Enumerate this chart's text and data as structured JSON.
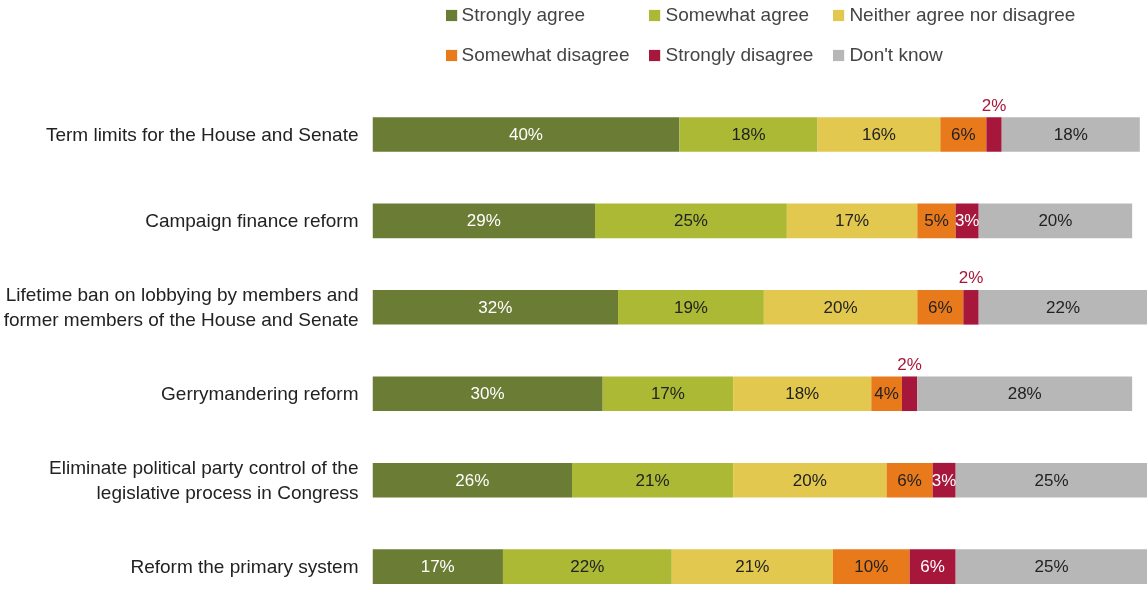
{
  "chart_data": {
    "type": "bar",
    "orientation": "horizontal",
    "stacked": true,
    "legend": "top",
    "categories": [
      "Term limits for the House and Senate",
      "Campaign finance reform",
      "Lifetime ban on lobbying by members and former members of the House and Senate",
      "Gerrymandering reform",
      "Eliminate political party control of the legislative process in Congress",
      "Reform the primary system"
    ],
    "series": [
      {
        "name": "Strongly agree",
        "color": "#6b7d34",
        "values": [
          40,
          29,
          32,
          30,
          26,
          17
        ],
        "value_labels": [
          "40%",
          "29%",
          "32%",
          "30%",
          "26%",
          "17%"
        ]
      },
      {
        "name": "Somewhat agree",
        "color": "#abb935",
        "values": [
          18,
          25,
          19,
          17,
          21,
          22
        ],
        "value_labels": [
          "18%",
          "25%",
          "19%",
          "17%",
          "21%",
          "22%"
        ]
      },
      {
        "name": "Neither agree nor disagree",
        "color": "#e2c84e",
        "values": [
          16,
          17,
          20,
          18,
          20,
          21
        ],
        "value_labels": [
          "16%",
          "17%",
          "20%",
          "18%",
          "20%",
          "21%"
        ]
      },
      {
        "name": "Somewhat disagree",
        "color": "#e97a1c",
        "values": [
          6,
          5,
          6,
          4,
          6,
          10
        ],
        "value_labels": [
          "6%",
          "5%",
          "6%",
          "4%",
          "6%",
          "10%"
        ]
      },
      {
        "name": "Strongly disagree",
        "color": "#a6173b",
        "values": [
          2,
          3,
          2,
          2,
          3,
          6
        ],
        "value_labels": [
          "2%",
          "3%",
          "2%",
          "2%",
          "3%",
          "6%"
        ]
      },
      {
        "name": "Don't know",
        "color": "#b7b7b7",
        "values": [
          18,
          20,
          22,
          28,
          25,
          25
        ],
        "value_labels": [
          "18%",
          "20%",
          "22%",
          "28%",
          "25%",
          "25%"
        ]
      }
    ]
  }
}
